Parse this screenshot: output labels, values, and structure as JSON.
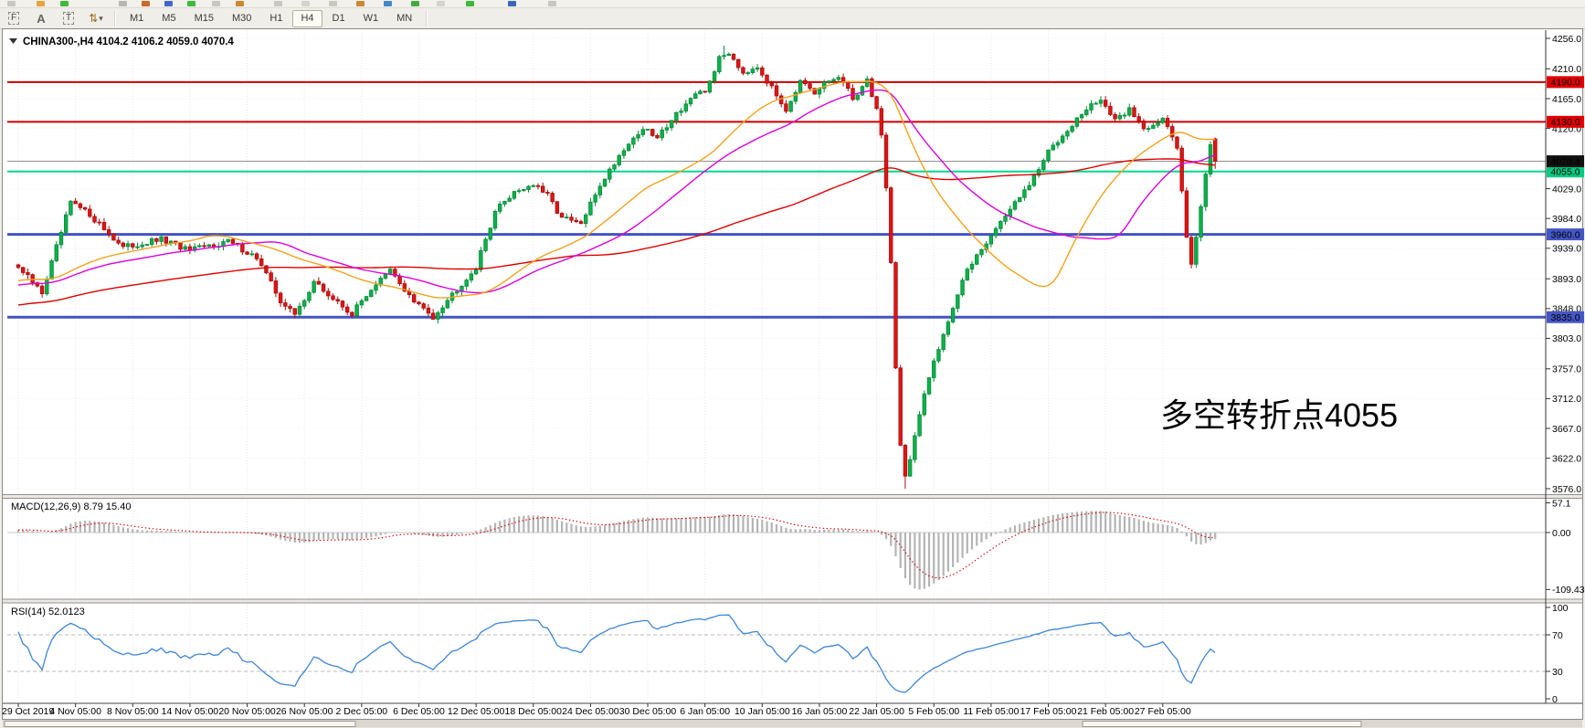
{
  "toolbar": {
    "tools": [
      {
        "id": "fibo-grid-tool",
        "glyph": "F"
      },
      {
        "id": "text-label-tool",
        "glyph": "A"
      },
      {
        "id": "text-box-tool",
        "glyph": "T"
      },
      {
        "id": "arrows-tool",
        "glyph": "⇅"
      },
      {
        "id": "arrows-dropdown",
        "glyph": "▾"
      }
    ],
    "timeframes": [
      {
        "label": "M1",
        "active": false
      },
      {
        "label": "M5",
        "active": false
      },
      {
        "label": "M15",
        "active": false
      },
      {
        "label": "M30",
        "active": false
      },
      {
        "label": "H1",
        "active": false
      },
      {
        "label": "H4",
        "active": true
      },
      {
        "label": "D1",
        "active": false
      },
      {
        "label": "W1",
        "active": false
      },
      {
        "label": "MN",
        "active": false
      }
    ]
  },
  "chart": {
    "title_text": "CHINA300-,H4  4104.2 4106.2 4059.0 4070.4",
    "annotation": {
      "text": "多空转折点4055",
      "color": "#ff2619"
    },
    "y_axis_ticks": [
      4256.0,
      4210.0,
      4165.0,
      4120.0,
      4029.0,
      3984.0,
      3939.0,
      3893.0,
      3848.0,
      3803.0,
      3757.0,
      3712.0,
      3667.0,
      3622.0,
      3576.0
    ],
    "price_lines": [
      {
        "price": 4190.0,
        "label": "4190.0",
        "line_color": "#cc0000",
        "badge_bg": "#e00000",
        "badge_text": "#ffffff",
        "thickness": 2
      },
      {
        "price": 4130.0,
        "label": "4130.0",
        "line_color": "#cc0000",
        "badge_bg": "#e00000",
        "badge_text": "#ffffff",
        "thickness": 2
      },
      {
        "price": 4055.0,
        "label": "4055.0",
        "line_color": "#00d68f",
        "badge_bg": "#00cc83",
        "badge_text": "#ffffff",
        "thickness": 2
      },
      {
        "price": 3960.0,
        "label": "3960.0",
        "line_color": "#4353c2",
        "badge_bg": "#4556c5",
        "badge_text": "#ffffff",
        "thickness": 3
      },
      {
        "price": 3835.0,
        "label": "3835.0",
        "line_color": "#4353c2",
        "badge_bg": "#4556c5",
        "badge_text": "#ffffff",
        "thickness": 3
      }
    ],
    "current_price": {
      "value": 4070.4,
      "label": "4070.4",
      "line_color": "#909090",
      "badge_bg": "#111111",
      "badge_text": "#ffffff"
    },
    "x_axis_labels": [
      "29 Oct 2019",
      "4 Nov 05:00",
      "8 Nov 05:00",
      "14 Nov 05:00",
      "20 Nov 05:00",
      "26 Nov 05:00",
      "2 Dec 05:00",
      "6 Dec 05:00",
      "12 Dec 05:00",
      "18 Dec 05:00",
      "24 Dec 05:00",
      "30 Dec 05:00",
      "6 Jan 05:00",
      "10 Jan 05:00",
      "16 Jan 05:00",
      "22 Jan 05:00",
      "5 Feb 05:00",
      "11 Feb 05:00",
      "17 Feb 05:00",
      "21 Feb 05:00",
      "27 Feb 05:00"
    ]
  },
  "macd_panel": {
    "label": "MACD(12,26,9) 8.79 15.40",
    "ticks": [
      {
        "label": "57.1",
        "value": 57.1
      },
      {
        "label": "0.00",
        "value": 0
      },
      {
        "label": "-109.43",
        "value": -109.43
      }
    ]
  },
  "rsi_panel": {
    "label": "RSI(14) 52.0123",
    "ticks": [
      {
        "label": "100",
        "value": 100
      },
      {
        "label": "70",
        "value": 70
      },
      {
        "label": "30",
        "value": 30
      },
      {
        "label": "0",
        "value": 0
      }
    ],
    "levels": [
      70,
      30
    ]
  },
  "chart_data": {
    "type": "candlestick",
    "symbol": "CHINA300-",
    "timeframe": "H4",
    "current_ohlc": {
      "open": 4104.2,
      "high": 4106.2,
      "low": 4059.0,
      "close": 4070.4
    },
    "x_range": [
      "29 Oct 2019",
      "27 Feb 2020"
    ],
    "y_range": [
      3576.0,
      4256.0
    ],
    "num_candles": 252,
    "bull_color": "#0cb14b",
    "bear_color": "#e01515",
    "price_waypoints": [
      [
        0,
        3910
      ],
      [
        5,
        3872
      ],
      [
        11,
        4008
      ],
      [
        15,
        3990
      ],
      [
        22,
        3940
      ],
      [
        30,
        3952
      ],
      [
        36,
        3935
      ],
      [
        44,
        3950
      ],
      [
        50,
        3925
      ],
      [
        55,
        3860
      ],
      [
        58,
        3838
      ],
      [
        62,
        3888
      ],
      [
        66,
        3862
      ],
      [
        70,
        3840
      ],
      [
        74,
        3878
      ],
      [
        78,
        3905
      ],
      [
        83,
        3858
      ],
      [
        87,
        3836
      ],
      [
        91,
        3870
      ],
      [
        96,
        3910
      ],
      [
        100,
        3995
      ],
      [
        104,
        4025
      ],
      [
        108,
        4035
      ],
      [
        111,
        4018
      ],
      [
        114,
        3985
      ],
      [
        118,
        3975
      ],
      [
        122,
        4035
      ],
      [
        127,
        4090
      ],
      [
        131,
        4120
      ],
      [
        134,
        4105
      ],
      [
        137,
        4135
      ],
      [
        141,
        4165
      ],
      [
        144,
        4175
      ],
      [
        147,
        4225
      ],
      [
        149,
        4235
      ],
      [
        152,
        4205
      ],
      [
        155,
        4215
      ],
      [
        158,
        4180
      ],
      [
        161,
        4150
      ],
      [
        164,
        4190
      ],
      [
        167,
        4170
      ],
      [
        169,
        4188
      ],
      [
        172,
        4198
      ],
      [
        175,
        4165
      ],
      [
        178,
        4192
      ],
      [
        180,
        4150
      ],
      [
        181,
        4110
      ],
      [
        182,
        4030
      ],
      [
        183,
        3920
      ],
      [
        184,
        3760
      ],
      [
        185,
        3640
      ],
      [
        186,
        3595
      ],
      [
        187,
        3620
      ],
      [
        188,
        3655
      ],
      [
        190,
        3715
      ],
      [
        192,
        3770
      ],
      [
        194,
        3810
      ],
      [
        196,
        3850
      ],
      [
        198,
        3890
      ],
      [
        201,
        3930
      ],
      [
        204,
        3958
      ],
      [
        207,
        3990
      ],
      [
        210,
        4015
      ],
      [
        213,
        4045
      ],
      [
        216,
        4085
      ],
      [
        220,
        4120
      ],
      [
        224,
        4148
      ],
      [
        227,
        4165
      ],
      [
        230,
        4130
      ],
      [
        233,
        4150
      ],
      [
        236,
        4120
      ],
      [
        240,
        4135
      ],
      [
        243,
        4090
      ],
      [
        245,
        3960
      ],
      [
        246,
        3918
      ],
      [
        248,
        4000
      ],
      [
        249,
        4050
      ],
      [
        250,
        4098
      ],
      [
        251,
        4070.4
      ]
    ],
    "forced_extremes": {
      "high": {
        "index": 148,
        "price": 4245
      },
      "low": {
        "index": 186,
        "price": 3576
      }
    },
    "moving_averages": [
      {
        "period": 34,
        "color": "#f2a21c"
      },
      {
        "period": 48,
        "color": "#dd00dd"
      },
      {
        "period": 110,
        "color": "#e00000"
      }
    ],
    "horizontal_levels": [
      4190.0,
      4130.0,
      4055.0,
      3960.0,
      3835.0
    ],
    "indicators": [
      {
        "name": "MACD",
        "params": [
          12,
          26,
          9
        ],
        "current": [
          8.79,
          15.4
        ],
        "axis_range": [
          -109.43,
          57.1
        ]
      },
      {
        "name": "RSI",
        "params": [
          14
        ],
        "current": 52.0123,
        "axis_range": [
          0,
          100
        ],
        "levels": [
          70,
          30
        ]
      }
    ]
  }
}
